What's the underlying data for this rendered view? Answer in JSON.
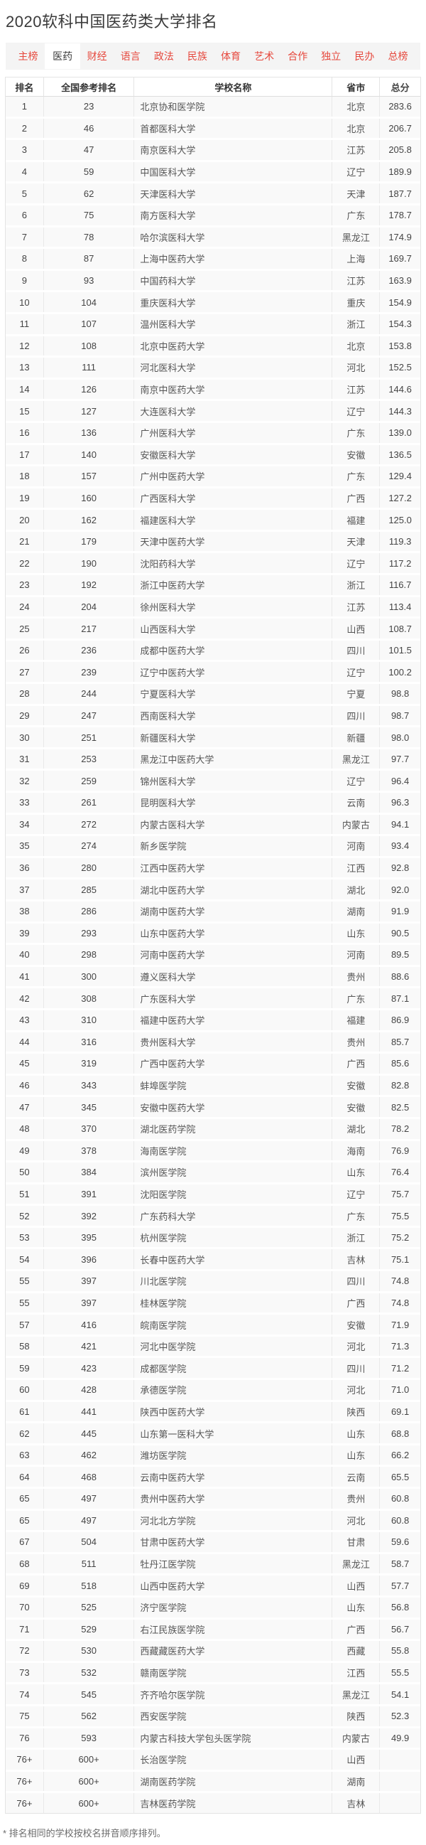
{
  "page": {
    "title": "2020软科中国医药类大学排名"
  },
  "tabs": {
    "items": [
      {
        "label": "主榜",
        "active": false
      },
      {
        "label": "医药",
        "active": true
      },
      {
        "label": "财经",
        "active": false
      },
      {
        "label": "语言",
        "active": false
      },
      {
        "label": "政法",
        "active": false
      },
      {
        "label": "民族",
        "active": false
      },
      {
        "label": "体育",
        "active": false
      },
      {
        "label": "艺术",
        "active": false
      },
      {
        "label": "合作",
        "active": false
      },
      {
        "label": "独立",
        "active": false
      },
      {
        "label": "民办",
        "active": false
      },
      {
        "label": "总榜",
        "active": false
      }
    ]
  },
  "table": {
    "columns": [
      "排名",
      "全国参考排名",
      "学校名称",
      "省市",
      "总分"
    ],
    "rows": [
      {
        "rank": "1",
        "national_rank": "23",
        "school": "北京协和医学院",
        "province": "北京",
        "score": "283.6"
      },
      {
        "rank": "2",
        "national_rank": "46",
        "school": "首都医科大学",
        "province": "北京",
        "score": "206.7"
      },
      {
        "rank": "3",
        "national_rank": "47",
        "school": "南京医科大学",
        "province": "江苏",
        "score": "205.8"
      },
      {
        "rank": "4",
        "national_rank": "59",
        "school": "中国医科大学",
        "province": "辽宁",
        "score": "189.9"
      },
      {
        "rank": "5",
        "national_rank": "62",
        "school": "天津医科大学",
        "province": "天津",
        "score": "187.7"
      },
      {
        "rank": "6",
        "national_rank": "75",
        "school": "南方医科大学",
        "province": "广东",
        "score": "178.7"
      },
      {
        "rank": "7",
        "national_rank": "78",
        "school": "哈尔滨医科大学",
        "province": "黑龙江",
        "score": "174.9"
      },
      {
        "rank": "8",
        "national_rank": "87",
        "school": "上海中医药大学",
        "province": "上海",
        "score": "169.7"
      },
      {
        "rank": "9",
        "national_rank": "93",
        "school": "中国药科大学",
        "province": "江苏",
        "score": "163.9"
      },
      {
        "rank": "10",
        "national_rank": "104",
        "school": "重庆医科大学",
        "province": "重庆",
        "score": "154.9"
      },
      {
        "rank": "11",
        "national_rank": "107",
        "school": "温州医科大学",
        "province": "浙江",
        "score": "154.3"
      },
      {
        "rank": "12",
        "national_rank": "108",
        "school": "北京中医药大学",
        "province": "北京",
        "score": "153.8"
      },
      {
        "rank": "13",
        "national_rank": "111",
        "school": "河北医科大学",
        "province": "河北",
        "score": "152.5"
      },
      {
        "rank": "14",
        "national_rank": "126",
        "school": "南京中医药大学",
        "province": "江苏",
        "score": "144.6"
      },
      {
        "rank": "15",
        "national_rank": "127",
        "school": "大连医科大学",
        "province": "辽宁",
        "score": "144.3"
      },
      {
        "rank": "16",
        "national_rank": "136",
        "school": "广州医科大学",
        "province": "广东",
        "score": "139.0"
      },
      {
        "rank": "17",
        "national_rank": "140",
        "school": "安徽医科大学",
        "province": "安徽",
        "score": "136.5"
      },
      {
        "rank": "18",
        "national_rank": "157",
        "school": "广州中医药大学",
        "province": "广东",
        "score": "129.4"
      },
      {
        "rank": "19",
        "national_rank": "160",
        "school": "广西医科大学",
        "province": "广西",
        "score": "127.2"
      },
      {
        "rank": "20",
        "national_rank": "162",
        "school": "福建医科大学",
        "province": "福建",
        "score": "125.0"
      },
      {
        "rank": "21",
        "national_rank": "179",
        "school": "天津中医药大学",
        "province": "天津",
        "score": "119.3"
      },
      {
        "rank": "22",
        "national_rank": "190",
        "school": "沈阳药科大学",
        "province": "辽宁",
        "score": "117.2"
      },
      {
        "rank": "23",
        "national_rank": "192",
        "school": "浙江中医药大学",
        "province": "浙江",
        "score": "116.7"
      },
      {
        "rank": "24",
        "national_rank": "204",
        "school": "徐州医科大学",
        "province": "江苏",
        "score": "113.4"
      },
      {
        "rank": "25",
        "national_rank": "217",
        "school": "山西医科大学",
        "province": "山西",
        "score": "108.7"
      },
      {
        "rank": "26",
        "national_rank": "236",
        "school": "成都中医药大学",
        "province": "四川",
        "score": "101.5"
      },
      {
        "rank": "27",
        "national_rank": "239",
        "school": "辽宁中医药大学",
        "province": "辽宁",
        "score": "100.2"
      },
      {
        "rank": "28",
        "national_rank": "244",
        "school": "宁夏医科大学",
        "province": "宁夏",
        "score": "98.8"
      },
      {
        "rank": "29",
        "national_rank": "247",
        "school": "西南医科大学",
        "province": "四川",
        "score": "98.7"
      },
      {
        "rank": "30",
        "national_rank": "251",
        "school": "新疆医科大学",
        "province": "新疆",
        "score": "98.0"
      },
      {
        "rank": "31",
        "national_rank": "253",
        "school": "黑龙江中医药大学",
        "province": "黑龙江",
        "score": "97.7"
      },
      {
        "rank": "32",
        "national_rank": "259",
        "school": "锦州医科大学",
        "province": "辽宁",
        "score": "96.4"
      },
      {
        "rank": "33",
        "national_rank": "261",
        "school": "昆明医科大学",
        "province": "云南",
        "score": "96.3"
      },
      {
        "rank": "34",
        "national_rank": "272",
        "school": "内蒙古医科大学",
        "province": "内蒙古",
        "score": "94.1"
      },
      {
        "rank": "35",
        "national_rank": "274",
        "school": "新乡医学院",
        "province": "河南",
        "score": "93.4"
      },
      {
        "rank": "36",
        "national_rank": "280",
        "school": "江西中医药大学",
        "province": "江西",
        "score": "92.8"
      },
      {
        "rank": "37",
        "national_rank": "285",
        "school": "湖北中医药大学",
        "province": "湖北",
        "score": "92.0"
      },
      {
        "rank": "38",
        "national_rank": "286",
        "school": "湖南中医药大学",
        "province": "湖南",
        "score": "91.9"
      },
      {
        "rank": "39",
        "national_rank": "293",
        "school": "山东中医药大学",
        "province": "山东",
        "score": "90.5"
      },
      {
        "rank": "40",
        "national_rank": "298",
        "school": "河南中医药大学",
        "province": "河南",
        "score": "89.5"
      },
      {
        "rank": "41",
        "national_rank": "300",
        "school": "遵义医科大学",
        "province": "贵州",
        "score": "88.6"
      },
      {
        "rank": "42",
        "national_rank": "308",
        "school": "广东医科大学",
        "province": "广东",
        "score": "87.1"
      },
      {
        "rank": "43",
        "national_rank": "310",
        "school": "福建中医药大学",
        "province": "福建",
        "score": "86.9"
      },
      {
        "rank": "44",
        "national_rank": "316",
        "school": "贵州医科大学",
        "province": "贵州",
        "score": "85.7"
      },
      {
        "rank": "45",
        "national_rank": "319",
        "school": "广西中医药大学",
        "province": "广西",
        "score": "85.6"
      },
      {
        "rank": "46",
        "national_rank": "343",
        "school": "蚌埠医学院",
        "province": "安徽",
        "score": "82.8"
      },
      {
        "rank": "47",
        "national_rank": "345",
        "school": "安徽中医药大学",
        "province": "安徽",
        "score": "82.5"
      },
      {
        "rank": "48",
        "national_rank": "370",
        "school": "湖北医药学院",
        "province": "湖北",
        "score": "78.2"
      },
      {
        "rank": "49",
        "national_rank": "378",
        "school": "海南医学院",
        "province": "海南",
        "score": "76.9"
      },
      {
        "rank": "50",
        "national_rank": "384",
        "school": "滨州医学院",
        "province": "山东",
        "score": "76.4"
      },
      {
        "rank": "51",
        "national_rank": "391",
        "school": "沈阳医学院",
        "province": "辽宁",
        "score": "75.7"
      },
      {
        "rank": "52",
        "national_rank": "392",
        "school": "广东药科大学",
        "province": "广东",
        "score": "75.5"
      },
      {
        "rank": "53",
        "national_rank": "395",
        "school": "杭州医学院",
        "province": "浙江",
        "score": "75.2"
      },
      {
        "rank": "54",
        "national_rank": "396",
        "school": "长春中医药大学",
        "province": "吉林",
        "score": "75.1"
      },
      {
        "rank": "55",
        "national_rank": "397",
        "school": "川北医学院",
        "province": "四川",
        "score": "74.8"
      },
      {
        "rank": "55",
        "national_rank": "397",
        "school": "桂林医学院",
        "province": "广西",
        "score": "74.8"
      },
      {
        "rank": "57",
        "national_rank": "416",
        "school": "皖南医学院",
        "province": "安徽",
        "score": "71.9"
      },
      {
        "rank": "58",
        "national_rank": "421",
        "school": "河北中医学院",
        "province": "河北",
        "score": "71.3"
      },
      {
        "rank": "59",
        "national_rank": "423",
        "school": "成都医学院",
        "province": "四川",
        "score": "71.2"
      },
      {
        "rank": "60",
        "national_rank": "428",
        "school": "承德医学院",
        "province": "河北",
        "score": "71.0"
      },
      {
        "rank": "61",
        "national_rank": "441",
        "school": "陕西中医药大学",
        "province": "陕西",
        "score": "69.1"
      },
      {
        "rank": "62",
        "national_rank": "445",
        "school": "山东第一医科大学",
        "province": "山东",
        "score": "68.8"
      },
      {
        "rank": "63",
        "national_rank": "462",
        "school": "潍坊医学院",
        "province": "山东",
        "score": "66.2"
      },
      {
        "rank": "64",
        "national_rank": "468",
        "school": "云南中医药大学",
        "province": "云南",
        "score": "65.5"
      },
      {
        "rank": "65",
        "national_rank": "497",
        "school": "贵州中医药大学",
        "province": "贵州",
        "score": "60.8"
      },
      {
        "rank": "65",
        "national_rank": "497",
        "school": "河北北方学院",
        "province": "河北",
        "score": "60.8"
      },
      {
        "rank": "67",
        "national_rank": "504",
        "school": "甘肃中医药大学",
        "province": "甘肃",
        "score": "59.6"
      },
      {
        "rank": "68",
        "national_rank": "511",
        "school": "牡丹江医学院",
        "province": "黑龙江",
        "score": "58.7"
      },
      {
        "rank": "69",
        "national_rank": "518",
        "school": "山西中医药大学",
        "province": "山西",
        "score": "57.7"
      },
      {
        "rank": "70",
        "national_rank": "525",
        "school": "济宁医学院",
        "province": "山东",
        "score": "56.8"
      },
      {
        "rank": "71",
        "national_rank": "529",
        "school": "右江民族医学院",
        "province": "广西",
        "score": "56.7"
      },
      {
        "rank": "72",
        "national_rank": "530",
        "school": "西藏藏医药大学",
        "province": "西藏",
        "score": "55.8"
      },
      {
        "rank": "73",
        "national_rank": "532",
        "school": "赣南医学院",
        "province": "江西",
        "score": "55.5"
      },
      {
        "rank": "74",
        "national_rank": "545",
        "school": "齐齐哈尔医学院",
        "province": "黑龙江",
        "score": "54.1"
      },
      {
        "rank": "75",
        "national_rank": "562",
        "school": "西安医学院",
        "province": "陕西",
        "score": "52.3"
      },
      {
        "rank": "76",
        "national_rank": "593",
        "school": "内蒙古科技大学包头医学院",
        "province": "内蒙古",
        "score": "49.9"
      },
      {
        "rank": "76+",
        "national_rank": "600+",
        "school": "长治医学院",
        "province": "山西",
        "score": ""
      },
      {
        "rank": "76+",
        "national_rank": "600+",
        "school": "湖南医药学院",
        "province": "湖南",
        "score": ""
      },
      {
        "rank": "76+",
        "national_rank": "600+",
        "school": "吉林医药学院",
        "province": "吉林",
        "score": ""
      }
    ]
  },
  "footer": {
    "note": "* 排名相同的学校按校名拼音顺序排列。"
  },
  "colors": {
    "accent_red": "#e6483d",
    "tabbar_bg": "#f4f4f4",
    "row_bg": "#f9f9f9",
    "cell_border": "#e9e9e9",
    "text_dark": "#3a3a3a"
  }
}
